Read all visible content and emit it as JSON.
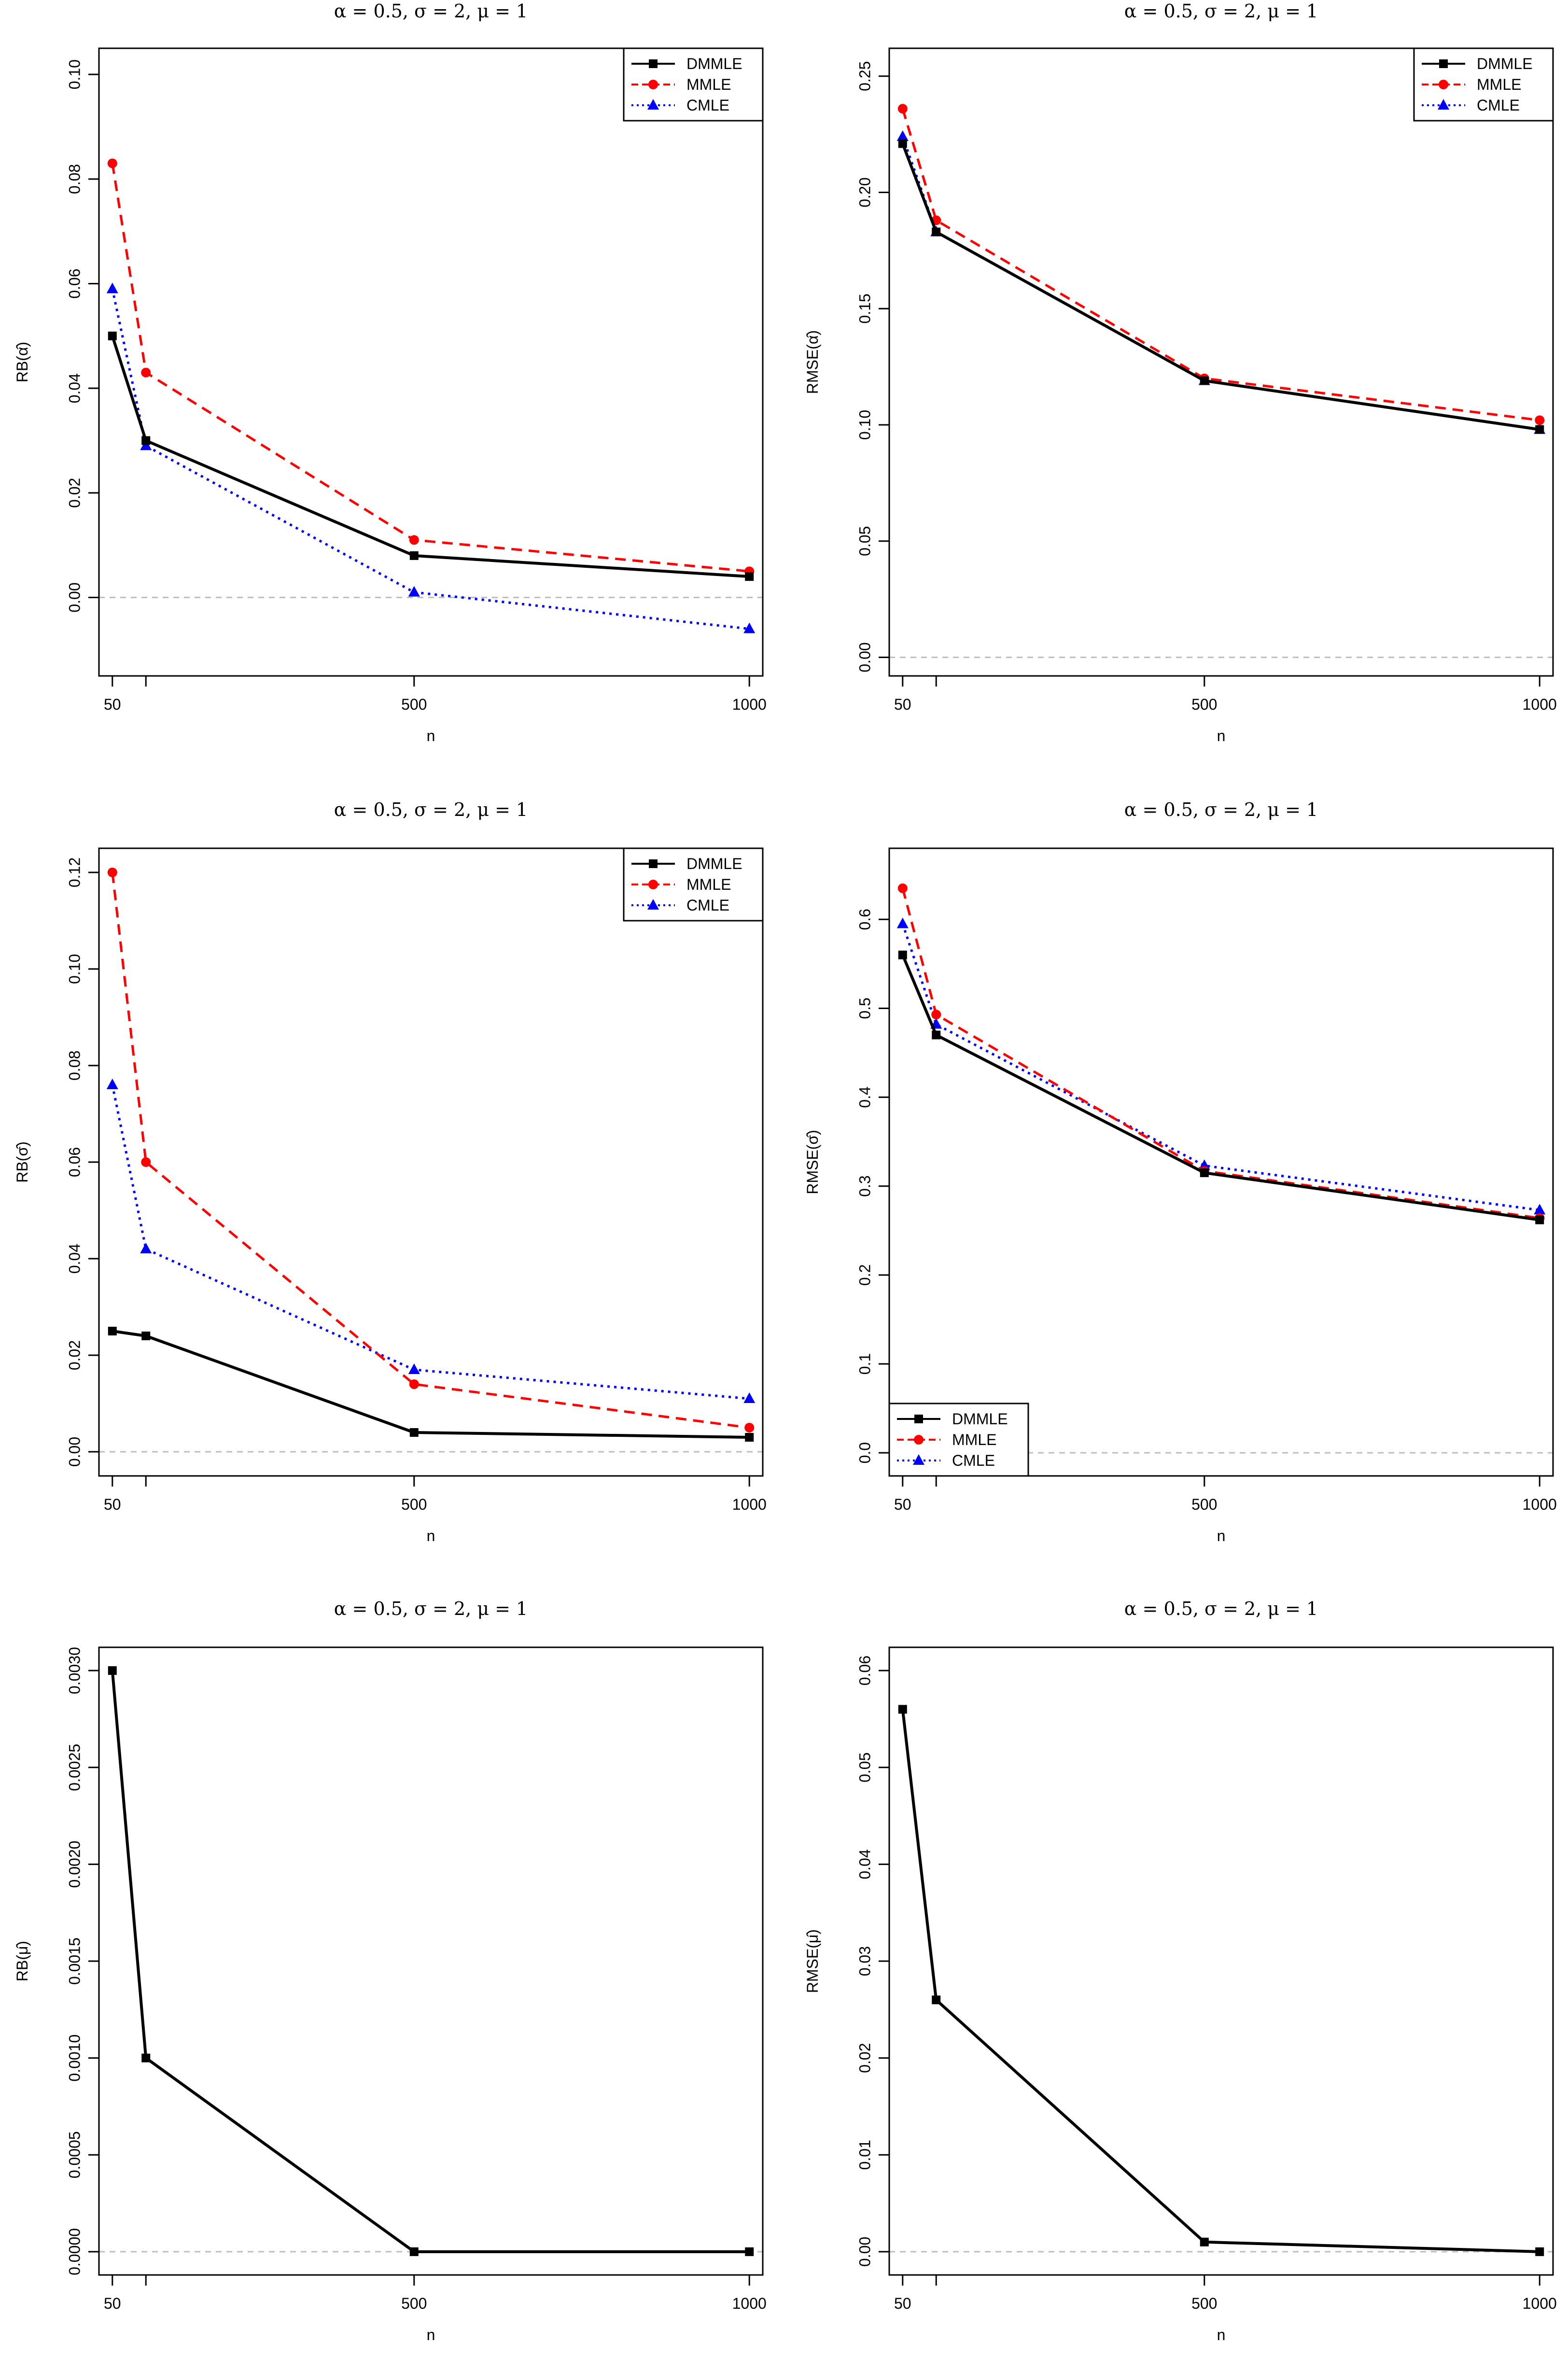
{
  "colors": {
    "dmmle": "#000000",
    "mmle": "#ff0000",
    "cmle": "#0000ff",
    "zero_line": "#bebebe",
    "frame": "#000000"
  },
  "chart_data": [
    {
      "id": "rb-alpha",
      "type": "line",
      "title": "α = 0.5, σ = 2, μ = 1",
      "xlabel": "n",
      "ylabel": "RB(α̂)",
      "x": [
        50,
        100,
        500,
        1000
      ],
      "xticks": [
        50,
        500,
        1000
      ],
      "xlim": [
        30,
        1020
      ],
      "ylim": [
        -0.015,
        0.105
      ],
      "yticks": [
        0.0,
        0.02,
        0.04,
        0.06,
        0.08,
        0.1
      ],
      "yticklabels": [
        "0.00",
        "0.02",
        "0.04",
        "0.06",
        "0.08",
        "0.10"
      ],
      "legend": "top-right",
      "series": [
        {
          "name": "DMMLE",
          "values": [
            0.05,
            0.03,
            0.008,
            0.004
          ]
        },
        {
          "name": "MMLE",
          "values": [
            0.083,
            0.043,
            0.011,
            0.005
          ]
        },
        {
          "name": "CMLE",
          "values": [
            0.059,
            0.029,
            0.001,
            -0.006
          ]
        }
      ]
    },
    {
      "id": "rmse-alpha",
      "type": "line",
      "title": "α = 0.5, σ = 2, μ = 1",
      "xlabel": "n",
      "ylabel": "RMSE(α̂)",
      "x": [
        50,
        100,
        500,
        1000
      ],
      "xticks": [
        50,
        500,
        1000
      ],
      "xlim": [
        30,
        1020
      ],
      "ylim": [
        -0.008,
        0.262
      ],
      "yticks": [
        0.0,
        0.05,
        0.1,
        0.15,
        0.2,
        0.25
      ],
      "yticklabels": [
        "0.00",
        "0.05",
        "0.10",
        "0.15",
        "0.20",
        "0.25"
      ],
      "legend": "top-right",
      "series": [
        {
          "name": "DMMLE",
          "values": [
            0.221,
            0.183,
            0.119,
            0.098
          ]
        },
        {
          "name": "MMLE",
          "values": [
            0.236,
            0.188,
            0.12,
            0.102
          ]
        },
        {
          "name": "CMLE",
          "values": [
            0.224,
            0.183,
            0.119,
            0.098
          ]
        }
      ]
    },
    {
      "id": "rb-sigma",
      "type": "line",
      "title": "α = 0.5, σ = 2, μ = 1",
      "xlabel": "n",
      "ylabel": "RB(σ̂)",
      "x": [
        50,
        100,
        500,
        1000
      ],
      "xticks": [
        50,
        500,
        1000
      ],
      "xlim": [
        30,
        1020
      ],
      "ylim": [
        -0.005,
        0.125
      ],
      "yticks": [
        0.0,
        0.02,
        0.04,
        0.06,
        0.08,
        0.1,
        0.12
      ],
      "yticklabels": [
        "0.00",
        "0.02",
        "0.04",
        "0.06",
        "0.08",
        "0.10",
        "0.12"
      ],
      "legend": "top-right",
      "series": [
        {
          "name": "DMMLE",
          "values": [
            0.025,
            0.024,
            0.004,
            0.003
          ]
        },
        {
          "name": "MMLE",
          "values": [
            0.12,
            0.06,
            0.014,
            0.005
          ]
        },
        {
          "name": "CMLE",
          "values": [
            0.076,
            0.042,
            0.017,
            0.011
          ]
        }
      ]
    },
    {
      "id": "rmse-sigma",
      "type": "line",
      "title": "α = 0.5, σ = 2, μ = 1",
      "xlabel": "n",
      "ylabel": "RMSE(σ̂)",
      "x": [
        50,
        100,
        500,
        1000
      ],
      "xticks": [
        50,
        500,
        1000
      ],
      "xlim": [
        30,
        1020
      ],
      "ylim": [
        -0.026,
        0.68
      ],
      "yticks": [
        0.0,
        0.1,
        0.2,
        0.3,
        0.4,
        0.5,
        0.6
      ],
      "yticklabels": [
        "0.0",
        "0.1",
        "0.2",
        "0.3",
        "0.4",
        "0.5",
        "0.6"
      ],
      "legend": "bottom-left",
      "series": [
        {
          "name": "DMMLE",
          "values": [
            0.56,
            0.47,
            0.315,
            0.262
          ]
        },
        {
          "name": "MMLE",
          "values": [
            0.635,
            0.493,
            0.317,
            0.264
          ]
        },
        {
          "name": "CMLE",
          "values": [
            0.595,
            0.482,
            0.323,
            0.273
          ]
        }
      ]
    },
    {
      "id": "rb-mu",
      "type": "line",
      "title": "α = 0.5, σ = 2, μ = 1",
      "xlabel": "n",
      "ylabel": "RB(μ̂)",
      "x": [
        50,
        100,
        500,
        1000
      ],
      "xticks": [
        50,
        500,
        1000
      ],
      "xlim": [
        30,
        1020
      ],
      "ylim": [
        -0.00012,
        0.00312
      ],
      "yticks": [
        0.0,
        0.0005,
        0.001,
        0.0015,
        0.002,
        0.0025,
        0.003
      ],
      "yticklabels": [
        "0.0000",
        "0.0005",
        "0.0010",
        "0.0015",
        "0.0020",
        "0.0025",
        "0.0030"
      ],
      "legend": "none",
      "series": [
        {
          "name": "DMMLE",
          "values": [
            0.003,
            0.001,
            0.0,
            0.0
          ]
        }
      ]
    },
    {
      "id": "rmse-mu",
      "type": "line",
      "title": "α = 0.5, σ = 2, μ = 1",
      "xlabel": "n",
      "ylabel": "RMSE(μ̂)",
      "x": [
        50,
        100,
        500,
        1000
      ],
      "xticks": [
        50,
        500,
        1000
      ],
      "xlim": [
        30,
        1020
      ],
      "ylim": [
        -0.0024,
        0.0624
      ],
      "yticks": [
        0.0,
        0.01,
        0.02,
        0.03,
        0.04,
        0.05,
        0.06
      ],
      "yticklabels": [
        "0.00",
        "0.01",
        "0.02",
        "0.03",
        "0.04",
        "0.05",
        "0.06"
      ],
      "legend": "none",
      "series": [
        {
          "name": "DMMLE",
          "values": [
            0.056,
            0.026,
            0.001,
            0.0
          ]
        }
      ]
    }
  ]
}
